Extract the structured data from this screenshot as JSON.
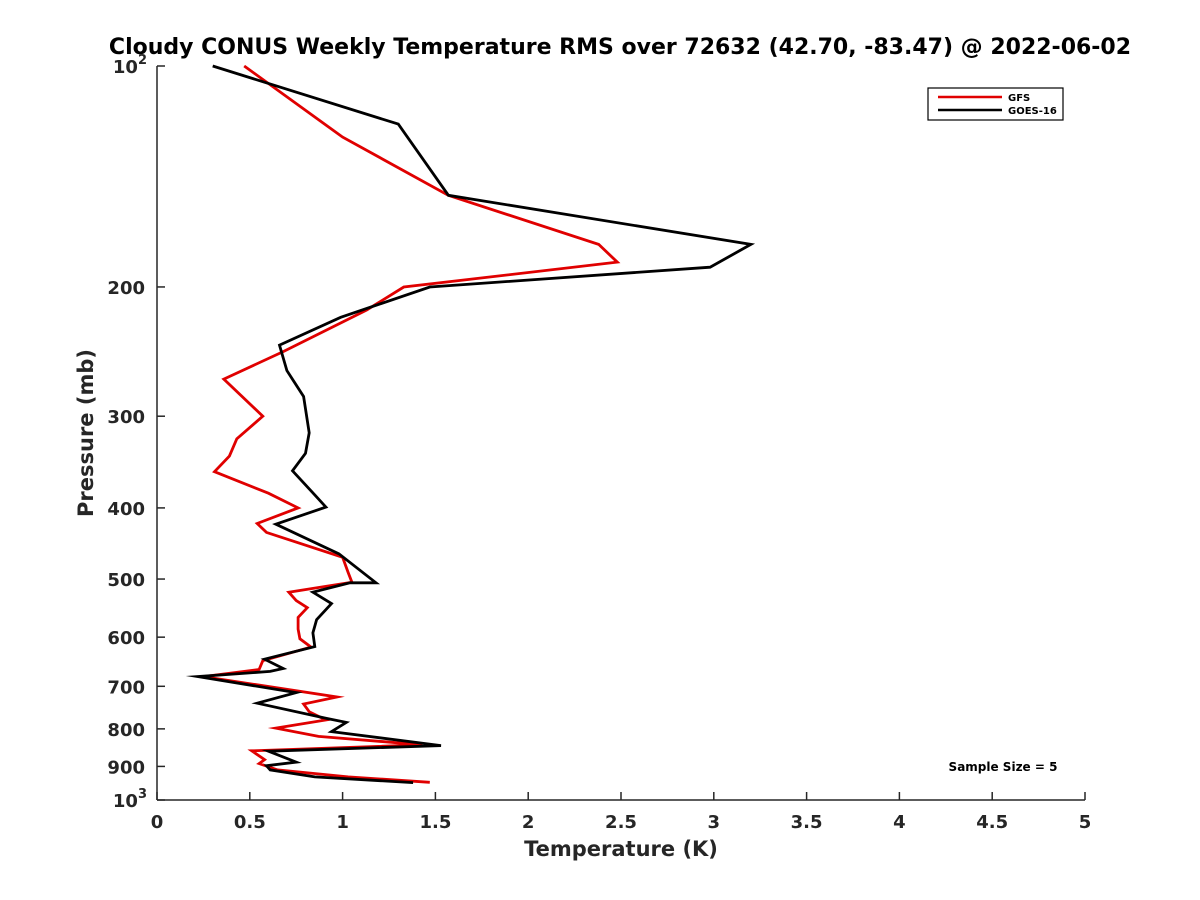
{
  "chart_data": {
    "type": "line",
    "title": "Cloudy CONUS Weekly Temperature RMS over 72632 (42.70, -83.47) @ 2022-06-02",
    "xlabel": "Temperature (K)",
    "ylabel": "Pressure (mb)",
    "xlim": [
      0,
      5
    ],
    "ylim": [
      100,
      1000
    ],
    "y_scale": "log",
    "y_reversed": true,
    "x_ticks": [
      "0",
      "0.5",
      "1",
      "1.5",
      "2",
      "2.5",
      "3",
      "3.5",
      "4",
      "4.5",
      "5"
    ],
    "y_ticks": [
      {
        "value": 100,
        "base": "10",
        "exp": "2",
        "label": ""
      },
      {
        "value": 200,
        "base": "",
        "exp": "",
        "label": "200"
      },
      {
        "value": 300,
        "base": "",
        "exp": "",
        "label": "300"
      },
      {
        "value": 400,
        "base": "",
        "exp": "",
        "label": "400"
      },
      {
        "value": 500,
        "base": "",
        "exp": "",
        "label": "500"
      },
      {
        "value": 600,
        "base": "",
        "exp": "",
        "label": "600"
      },
      {
        "value": 700,
        "base": "",
        "exp": "",
        "label": "700"
      },
      {
        "value": 800,
        "base": "",
        "exp": "",
        "label": "800"
      },
      {
        "value": 900,
        "base": "",
        "exp": "",
        "label": "900"
      },
      {
        "value": 1000,
        "base": "10",
        "exp": "3",
        "label": ""
      }
    ],
    "grid": false,
    "legend_position": "top-right",
    "annotation": "Sample Size = 5",
    "series": [
      {
        "name": "GFS",
        "color": "#e00000",
        "points": [
          [
            0.47,
            100
          ],
          [
            1.0,
            125
          ],
          [
            1.57,
            150
          ],
          [
            2.38,
            175
          ],
          [
            2.48,
            185
          ],
          [
            1.33,
            200
          ],
          [
            1.13,
            215
          ],
          [
            0.68,
            245
          ],
          [
            0.36,
            267
          ],
          [
            0.57,
            300
          ],
          [
            0.43,
            322
          ],
          [
            0.39,
            340
          ],
          [
            0.31,
            357
          ],
          [
            0.6,
            382
          ],
          [
            0.76,
            400
          ],
          [
            0.54,
            420
          ],
          [
            0.59,
            432
          ],
          [
            1.0,
            467
          ],
          [
            1.03,
            490
          ],
          [
            1.05,
            505
          ],
          [
            0.71,
            521
          ],
          [
            0.75,
            535
          ],
          [
            0.81,
            547
          ],
          [
            0.76,
            564
          ],
          [
            0.76,
            585
          ],
          [
            0.77,
            603
          ],
          [
            0.83,
            619
          ],
          [
            0.57,
            646
          ],
          [
            0.55,
            664
          ],
          [
            0.25,
            679
          ],
          [
            0.97,
            724
          ],
          [
            0.79,
            740
          ],
          [
            0.82,
            758
          ],
          [
            0.91,
            778
          ],
          [
            0.64,
            798
          ],
          [
            0.87,
            819
          ],
          [
            1.43,
            841
          ],
          [
            0.51,
            857
          ],
          [
            0.58,
            881
          ],
          [
            0.55,
            892
          ],
          [
            0.65,
            910
          ],
          [
            1.03,
            930
          ],
          [
            1.47,
            946
          ]
        ]
      },
      {
        "name": "GOES-16",
        "color": "#000000",
        "points": [
          [
            0.3,
            100
          ],
          [
            1.3,
            120
          ],
          [
            1.57,
            150
          ],
          [
            3.2,
            175
          ],
          [
            2.98,
            188
          ],
          [
            1.47,
            200
          ],
          [
            0.99,
            220
          ],
          [
            0.66,
            240
          ],
          [
            0.7,
            260
          ],
          [
            0.79,
            282
          ],
          [
            0.82,
            316
          ],
          [
            0.8,
            337
          ],
          [
            0.73,
            356
          ],
          [
            0.85,
            384
          ],
          [
            0.91,
            399
          ],
          [
            0.64,
            421
          ],
          [
            0.98,
            462
          ],
          [
            1.18,
            506
          ],
          [
            1.04,
            506
          ],
          [
            0.84,
            521
          ],
          [
            0.94,
            540
          ],
          [
            0.86,
            568
          ],
          [
            0.84,
            592
          ],
          [
            0.85,
            618
          ],
          [
            0.58,
            643
          ],
          [
            0.68,
            662
          ],
          [
            0.61,
            668
          ],
          [
            0.22,
            679
          ],
          [
            0.75,
            714
          ],
          [
            0.54,
            738
          ],
          [
            0.91,
            774
          ],
          [
            1.02,
            784
          ],
          [
            0.94,
            807
          ],
          [
            1.53,
            843
          ],
          [
            0.6,
            858
          ],
          [
            0.75,
            888
          ],
          [
            0.59,
            898
          ],
          [
            0.61,
            910
          ],
          [
            0.85,
            930
          ],
          [
            1.38,
            947
          ]
        ]
      }
    ]
  }
}
